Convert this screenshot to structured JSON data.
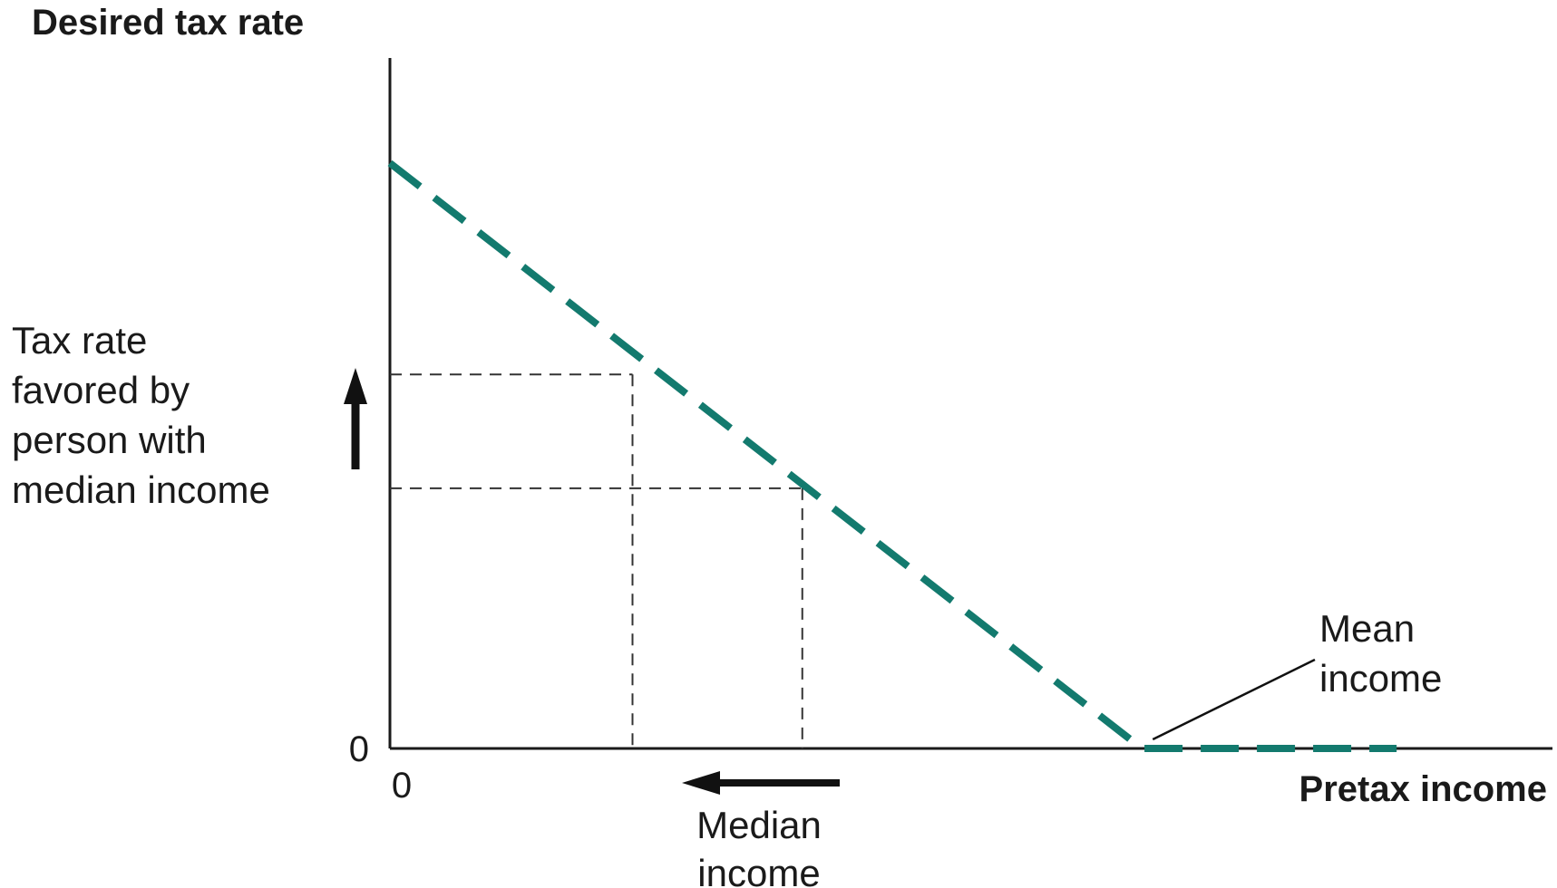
{
  "chart_data": {
    "type": "line",
    "title": "",
    "ylabel": "Desired tax rate",
    "xlabel": "Pretax income",
    "x_tick_labels": [
      "0"
    ],
    "y_tick_labels": [
      "0"
    ],
    "xlim": [
      0,
      10
    ],
    "ylim": [
      0,
      10
    ],
    "grid": false,
    "series": [
      {
        "style": "dashed",
        "color": "#137a6e",
        "x": [
          0,
          6.2,
          8.3
        ],
        "y": [
          7.2,
          0,
          0
        ]
      }
    ],
    "reference_points": [
      {
        "x": 2.0,
        "y": 4.6
      },
      {
        "x": 3.4,
        "y": 3.2
      }
    ],
    "annotations": {
      "y_side_label": [
        "Tax rate",
        "favored by",
        "person with",
        "median income"
      ],
      "x_side_label": [
        "Median",
        "income"
      ],
      "mean_label": [
        "Mean",
        "income"
      ],
      "y_arrow_direction": "up",
      "x_arrow_direction": "left"
    }
  }
}
